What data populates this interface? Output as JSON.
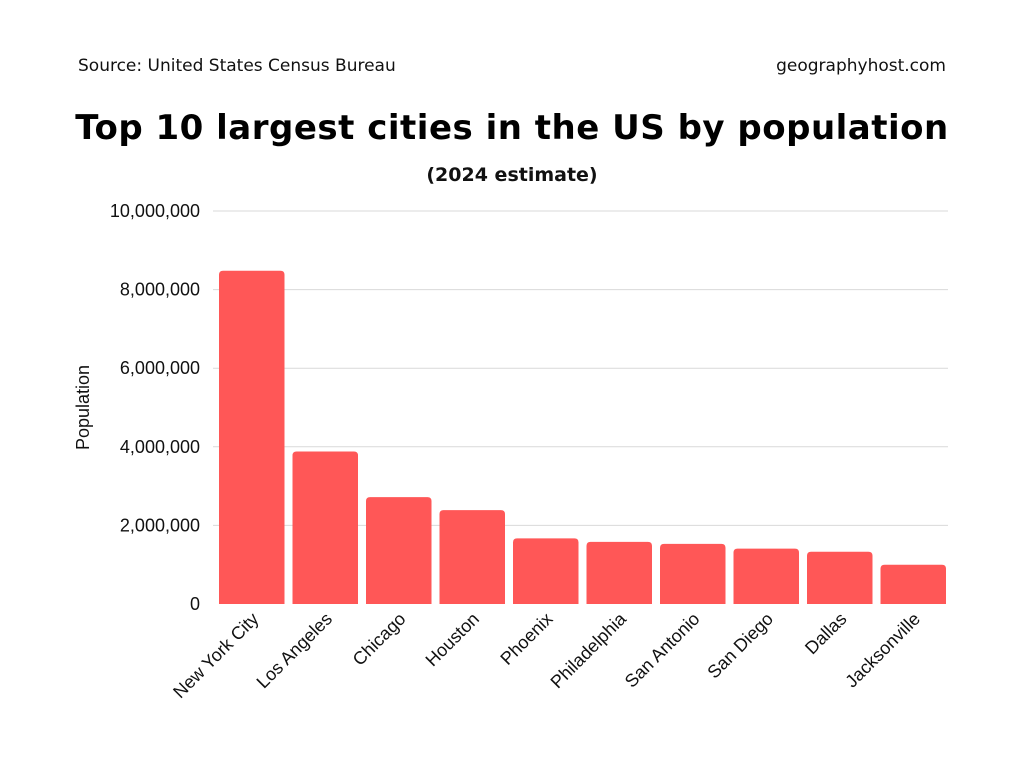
{
  "header": {
    "source": "Source: United States Census Bureau",
    "site": "geographyhost.com"
  },
  "chart_data": {
    "type": "bar",
    "title": "Top 10 largest cities in the US by population",
    "subtitle": "(2024 estimate)",
    "xlabel": "",
    "ylabel": "Population",
    "ylim": [
      0,
      10000000
    ],
    "yticks": [
      0,
      2000000,
      4000000,
      6000000,
      8000000,
      10000000
    ],
    "ytick_labels": [
      "0",
      "2,000,000",
      "4,000,000",
      "6,000,000",
      "8,000,000",
      "10,000,000"
    ],
    "grid": true,
    "categories": [
      "New York City",
      "Los Angeles",
      "Chicago",
      "Houston",
      "Phoenix",
      "Philadelphia",
      "San Antonio",
      "San Diego",
      "Dallas",
      "Jacksonville"
    ],
    "values": [
      8480000,
      3880000,
      2720000,
      2390000,
      1670000,
      1580000,
      1530000,
      1410000,
      1330000,
      1000000
    ],
    "bar_color": "#ff5757"
  }
}
